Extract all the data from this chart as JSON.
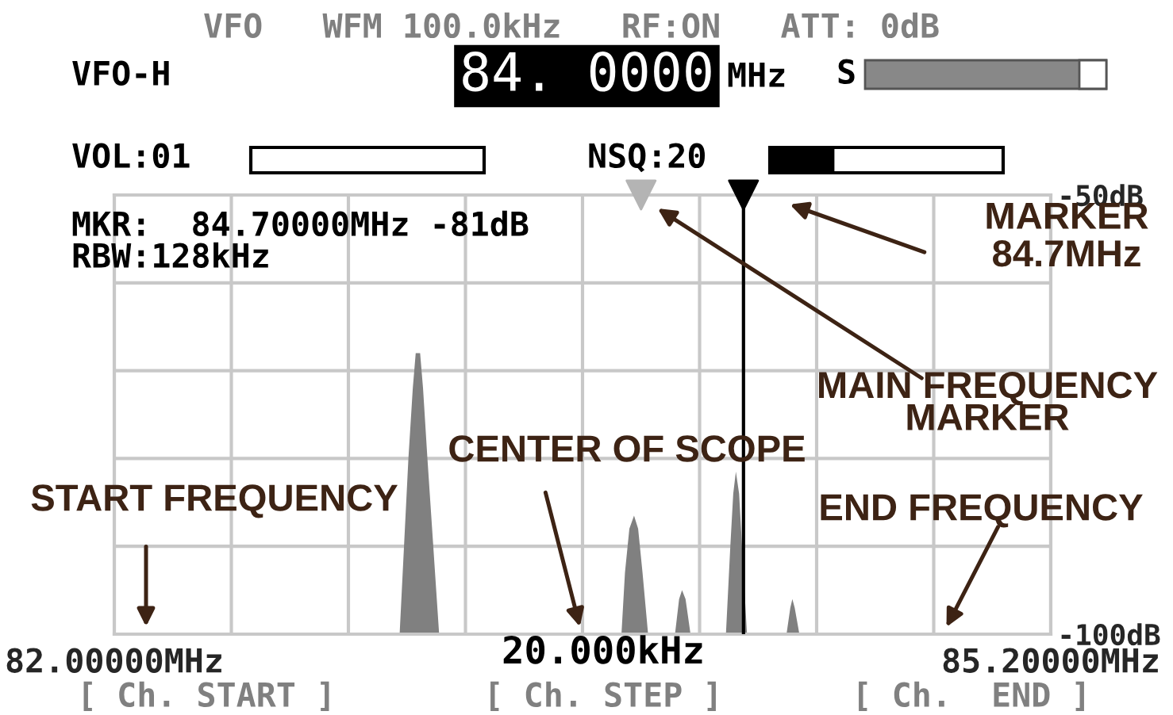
{
  "chart_data": {
    "type": "area",
    "series": [
      {
        "color": "#808080",
        "x": [
          82.0,
          82.975,
          82.99,
          83.005,
          83.02,
          83.03,
          83.045,
          83.055,
          83.07,
          83.09,
          83.11,
          83.733,
          83.745,
          83.76,
          83.776,
          83.79,
          83.805,
          83.824,
          83.916,
          83.93,
          83.94,
          83.952,
          83.969,
          84.09,
          84.105,
          84.115,
          84.124,
          84.135,
          84.145,
          84.162,
          84.297,
          84.31,
          84.317,
          84.325,
          84.341,
          85.2
        ],
        "values": [
          -100,
          -100,
          -90,
          -80,
          -72,
          -68,
          -68,
          -72,
          -80,
          -90,
          -100,
          -100,
          -93,
          -88,
          -86.5,
          -88,
          -93,
          -100,
          -100,
          -96,
          -95,
          -96,
          -100,
          -100,
          -90,
          -84,
          -81.5,
          -84,
          -90,
          -100,
          -100,
          -97,
          -96,
          -97,
          -100,
          -100
        ]
      },
      {
        "type": "scatter",
        "marker": "triangle",
        "color": "#b4b4b4",
        "x": [
          83.8
        ],
        "values": [
          -50
        ]
      },
      {
        "type": "scatter",
        "marker": "triangle",
        "color": "#000000",
        "x": [
          84.15
        ],
        "values": [
          -50
        ]
      }
    ],
    "xlim": [
      82.0,
      85.2
    ],
    "xticks": [
      {
        "value": 82.0,
        "label": "82.00000MHz"
      },
      {
        "value": 82.4,
        "label": null
      },
      {
        "value": 82.8,
        "label": null
      },
      {
        "value": 83.2,
        "label": null
      },
      {
        "value": 83.6,
        "label": null
      },
      {
        "value": 84.0,
        "label": null
      },
      {
        "value": 84.4,
        "label": null
      },
      {
        "value": 84.8,
        "label": null
      },
      {
        "value": 85.2,
        "label": "85.20000MHz"
      }
    ],
    "ylim": [
      -100,
      -50
    ],
    "yticks": [
      {
        "value": -100,
        "label": "-100dB"
      },
      {
        "value": -90,
        "label": null
      },
      {
        "value": -80,
        "label": null
      },
      {
        "value": -70,
        "label": null
      },
      {
        "value": -60,
        "label": null
      },
      {
        "value": -50,
        "label": "-50dB"
      }
    ],
    "grid": true,
    "ref_lines": [
      {
        "axis": "x",
        "value": 84.15,
        "label": null,
        "color": "#000000"
      }
    ],
    "annotations": [
      "VFO   WFM 100.0kHz   RF:ON   ATT: 0dB",
      "VFO-H",
      "84. 0000",
      "MHz",
      "S",
      "VOL:01",
      "NSQ:20",
      "MKR:  84.70000MHz -81dB",
      "RBW:128kHz",
      "MARKER\n84.7MHz",
      "MAIN FREQUENCY\nMARKER",
      "CENTER OF SCOPE",
      "START FREQUENCY",
      "END FREQUENCY",
      "20.000kHz",
      "[ Ch. START ]",
      "[ Ch. STEP ]",
      "[ Ch.  END ]"
    ]
  }
}
